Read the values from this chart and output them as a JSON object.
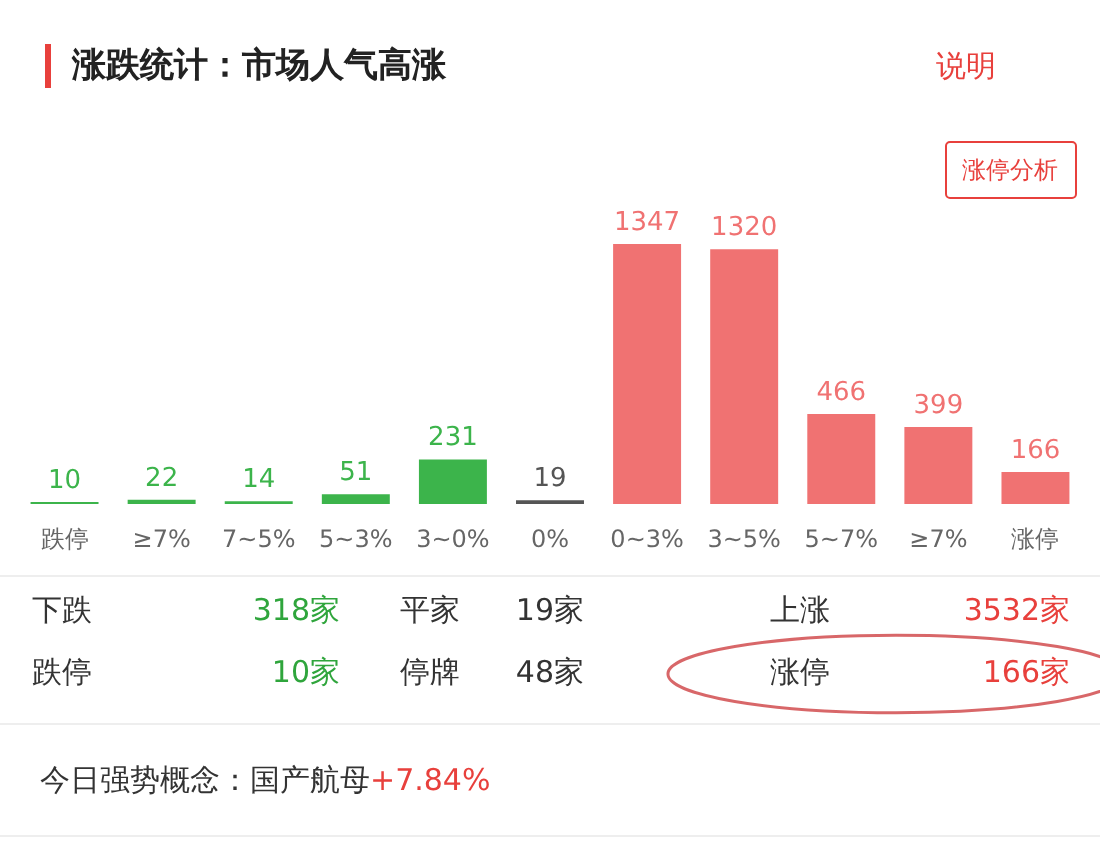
{
  "chart_data": {
    "type": "bar",
    "title": "涨跌统计：市场人气高涨",
    "categories": [
      "跌停",
      "≥7%",
      "7~5%",
      "5~3%",
      "3~0%",
      "0%",
      "0~3%",
      "3~5%",
      "5~7%",
      "≥7%",
      "涨停"
    ],
    "values": [
      10,
      22,
      14,
      51,
      231,
      19,
      1347,
      1320,
      466,
      399,
      166
    ],
    "colors": [
      "#3cb44b",
      "#3cb44b",
      "#3cb44b",
      "#3cb44b",
      "#3cb44b",
      "#555555",
      "#f07272",
      "#f07272",
      "#f07272",
      "#f07272",
      "#f07272"
    ],
    "data_labels": true,
    "annotations": [
      "说明",
      "涨停分析",
      "下跌",
      "318家",
      "平家",
      "19家",
      "上涨",
      "3532家",
      "跌停",
      "10家",
      "停牌",
      "48家",
      "涨停",
      "166家",
      "今日强势概念：",
      "国产航母",
      "+7.84%"
    ]
  }
}
